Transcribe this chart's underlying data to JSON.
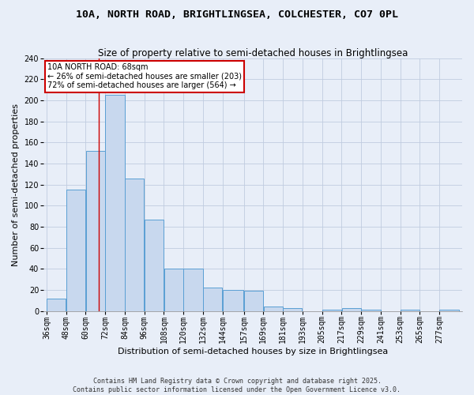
{
  "title1": "10A, NORTH ROAD, BRIGHTLINGSEA, COLCHESTER, CO7 0PL",
  "title2": "Size of property relative to semi-detached houses in Brightlingsea",
  "xlabel": "Distribution of semi-detached houses by size in Brightlingsea",
  "ylabel": "Number of semi-detached properties",
  "footer1": "Contains HM Land Registry data © Crown copyright and database right 2025.",
  "footer2": "Contains public sector information licensed under the Open Government Licence v3.0.",
  "bins": [
    36,
    48,
    60,
    72,
    84,
    96,
    108,
    120,
    132,
    144,
    157,
    169,
    181,
    193,
    205,
    217,
    229,
    241,
    253,
    265,
    277
  ],
  "counts": [
    12,
    115,
    152,
    205,
    126,
    87,
    40,
    40,
    22,
    20,
    19,
    4,
    3,
    0,
    1,
    3,
    1,
    0,
    1,
    0,
    1
  ],
  "bar_color": "#c8d8ee",
  "bar_edge_color": "#5a9fd4",
  "vline_x": 68,
  "vline_color": "#cc0000",
  "annotation_text": "10A NORTH ROAD: 68sqm\n← 26% of semi-detached houses are smaller (203)\n72% of semi-detached houses are larger (564) →",
  "ylim": [
    0,
    240
  ],
  "yticks": [
    0,
    20,
    40,
    60,
    80,
    100,
    120,
    140,
    160,
    180,
    200,
    220,
    240
  ],
  "bg_color": "#e8eef8",
  "plot_bg_color": "#e8eef8",
  "grid_color": "#d0d8e8",
  "title1_fontsize": 9.5,
  "title2_fontsize": 8.5,
  "axis_label_fontsize": 8,
  "tick_fontsize": 7,
  "footer_fontsize": 6
}
